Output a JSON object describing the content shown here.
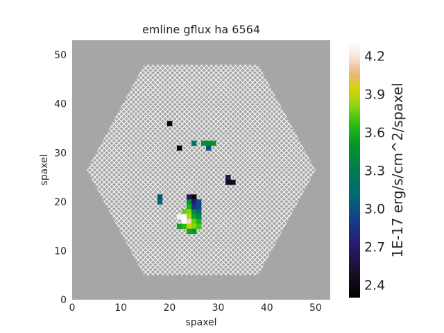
{
  "chart_data": {
    "type": "heatmap",
    "title": "emline gflux ha 6564",
    "xlabel": "spaxel",
    "ylabel": "spaxel",
    "xlim": [
      0,
      53
    ],
    "ylim": [
      0,
      53
    ],
    "xticks": [
      0,
      10,
      20,
      30,
      40,
      50
    ],
    "yticks": [
      0,
      10,
      20,
      30,
      40,
      50
    ],
    "grid": false,
    "background_color": "#a6a6a6",
    "hatch": "white crosshatch over the hexagonal IFU footprint (masked spaxels)",
    "footprint": {
      "shape": "hexagon",
      "center": [
        26.5,
        26.5
      ],
      "x_extent": [
        3,
        50
      ],
      "y_extent": [
        5,
        48
      ]
    },
    "colormap": "gist_ncar-like (black → navy → teal → green → yellow → white)",
    "colorbar": {
      "label": "1E-17 erg/s/cm^2/spaxel",
      "range": [
        2.3,
        4.3
      ],
      "ticks": [
        "2.4",
        "2.7",
        "3.0",
        "3.3",
        "3.6",
        "3.9",
        "4.2"
      ],
      "tick_values": [
        2.4,
        2.7,
        3.0,
        3.3,
        3.6,
        3.9,
        4.2
      ]
    },
    "cells": [
      {
        "x": 20,
        "y": 36,
        "value": 2.35
      },
      {
        "x": 22,
        "y": 31,
        "value": 2.35
      },
      {
        "x": 25,
        "y": 32,
        "value": 3.2
      },
      {
        "x": 27,
        "y": 32,
        "value": 3.45
      },
      {
        "x": 28,
        "y": 32,
        "value": 3.45
      },
      {
        "x": 29,
        "y": 32,
        "value": 3.5
      },
      {
        "x": 28,
        "y": 31,
        "value": 3.0
      },
      {
        "x": 32,
        "y": 25,
        "value": 2.6
      },
      {
        "x": 32,
        "y": 24,
        "value": 2.45
      },
      {
        "x": 33,
        "y": 24,
        "value": 2.4
      },
      {
        "x": 18,
        "y": 21,
        "value": 3.0
      },
      {
        "x": 18,
        "y": 20,
        "value": 3.15
      },
      {
        "x": 24,
        "y": 21,
        "value": 2.65
      },
      {
        "x": 25,
        "y": 21,
        "value": 2.4
      },
      {
        "x": 24,
        "y": 20,
        "value": 3.5
      },
      {
        "x": 25,
        "y": 20,
        "value": 2.7
      },
      {
        "x": 26,
        "y": 20,
        "value": 2.95
      },
      {
        "x": 24,
        "y": 19,
        "value": 3.6
      },
      {
        "x": 25,
        "y": 19,
        "value": 2.85
      },
      {
        "x": 26,
        "y": 19,
        "value": 2.95
      },
      {
        "x": 23,
        "y": 18,
        "value": 3.75
      },
      {
        "x": 24,
        "y": 18,
        "value": 3.8
      },
      {
        "x": 25,
        "y": 18,
        "value": 3.4
      },
      {
        "x": 26,
        "y": 18,
        "value": 3.1
      },
      {
        "x": 22,
        "y": 17,
        "value": 4.25
      },
      {
        "x": 23,
        "y": 17,
        "value": 4.3
      },
      {
        "x": 24,
        "y": 17,
        "value": 3.85
      },
      {
        "x": 25,
        "y": 17,
        "value": 3.55
      },
      {
        "x": 26,
        "y": 17,
        "value": 3.35
      },
      {
        "x": 23,
        "y": 16,
        "value": 4.3
      },
      {
        "x": 24,
        "y": 16,
        "value": 4.15
      },
      {
        "x": 25,
        "y": 16,
        "value": 3.75
      },
      {
        "x": 26,
        "y": 16,
        "value": 3.6
      },
      {
        "x": 22,
        "y": 15,
        "value": 3.55
      },
      {
        "x": 23,
        "y": 15,
        "value": 3.65
      },
      {
        "x": 24,
        "y": 15,
        "value": 3.9
      },
      {
        "x": 25,
        "y": 15,
        "value": 3.8
      },
      {
        "x": 26,
        "y": 15,
        "value": 3.7
      },
      {
        "x": 24,
        "y": 14,
        "value": 3.55
      },
      {
        "x": 25,
        "y": 14,
        "value": 3.5
      }
    ]
  }
}
